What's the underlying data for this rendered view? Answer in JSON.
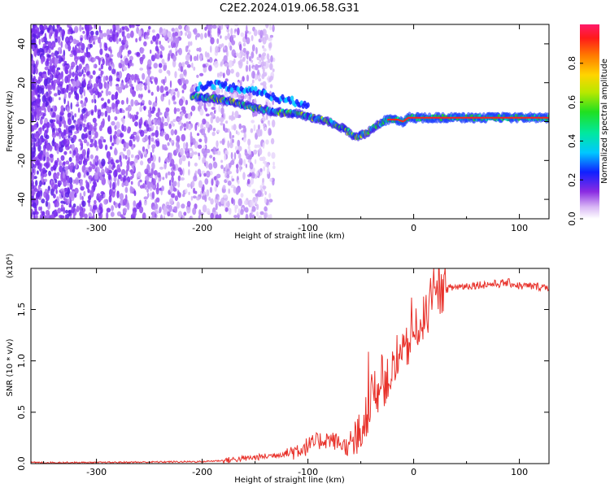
{
  "title": "C2E2.2024.019.06.58.G31",
  "chart_data": [
    {
      "type": "heatmap",
      "name": "spectrogram",
      "xlabel": "Height of straight line (km)",
      "ylabel": "Frequency (Hz)",
      "xlim": [
        -362,
        128
      ],
      "ylim": [
        -50,
        50
      ],
      "xticks": [
        -300,
        -200,
        -100,
        0,
        100
      ],
      "xtick_labels": [
        "-300",
        "-200",
        "-100",
        "0",
        "100"
      ],
      "yticks": [
        -40,
        -20,
        0,
        20,
        40
      ],
      "ytick_labels": [
        "-40",
        "-20",
        "0",
        "20",
        "40"
      ],
      "signal_track": {
        "x": [
          -210,
          -190,
          -170,
          -150,
          -130,
          -110,
          -95,
          -80,
          -65,
          -55,
          -45,
          -35,
          -25,
          -15,
          -10,
          -5,
          0,
          20,
          50,
          80,
          100,
          128
        ],
        "y": [
          13,
          12,
          10,
          7,
          5,
          4,
          2,
          0,
          -4,
          -8,
          -6,
          -2,
          1,
          1,
          0,
          2,
          2,
          2,
          2,
          2,
          2,
          2
        ]
      },
      "secondary_track": {
        "x": [
          -205,
          -185,
          -165,
          -150,
          -130,
          -110,
          -100
        ],
        "y": [
          18,
          19,
          17,
          16,
          12,
          10,
          9
        ]
      },
      "colorbar": {
        "label": "Normalized spectral amplitude",
        "range": [
          0,
          1
        ],
        "ticks": [
          0.0,
          0.2,
          0.4,
          0.6,
          0.8
        ],
        "tick_labels": [
          "0.0",
          "0.2",
          "0.4",
          "0.6",
          "0.8"
        ]
      }
    },
    {
      "type": "line",
      "name": "snr",
      "xlabel": "Height of straight line (km)",
      "ylabel": "SNR (10 * v/v)",
      "scale_label": "(x10⁴)",
      "xlim": [
        -362,
        128
      ],
      "ylim": [
        0,
        1.9
      ],
      "xticks": [
        -300,
        -200,
        -100,
        0,
        100
      ],
      "xtick_labels": [
        "-300",
        "-200",
        "-100",
        "0",
        "100"
      ],
      "yticks": [
        0,
        0.5,
        1.0,
        1.5
      ],
      "ytick_labels": [
        "0.0",
        "0.5",
        "1.0",
        "1.5"
      ],
      "color": "#e8322b",
      "x": [
        -362,
        -300,
        -250,
        -200,
        -180,
        -160,
        -140,
        -120,
        -100,
        -90,
        -80,
        -70,
        -60,
        -50,
        -45,
        -40,
        -35,
        -30,
        -25,
        -20,
        -15,
        -10,
        -5,
        0,
        5,
        10,
        15,
        20,
        25,
        30,
        40,
        60,
        80,
        90,
        100,
        128
      ],
      "y": [
        0.01,
        0.01,
        0.015,
        0.02,
        0.03,
        0.05,
        0.07,
        0.1,
        0.17,
        0.22,
        0.24,
        0.2,
        0.15,
        0.3,
        0.45,
        0.65,
        0.7,
        0.75,
        0.8,
        0.9,
        0.95,
        1.05,
        1.15,
        1.25,
        1.35,
        1.42,
        1.5,
        1.58,
        1.65,
        1.7,
        1.72,
        1.74,
        1.75,
        1.76,
        1.73,
        1.72
      ]
    }
  ]
}
